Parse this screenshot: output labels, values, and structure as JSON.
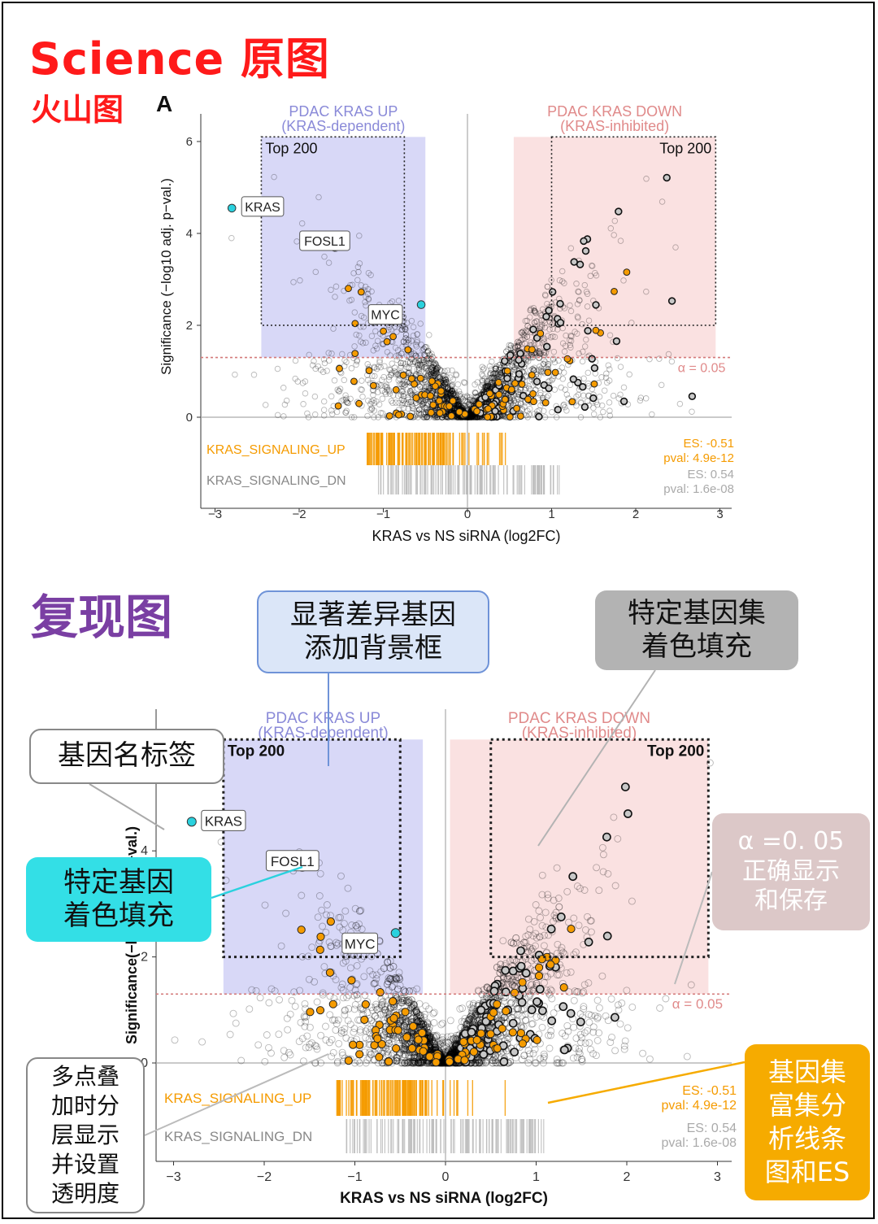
{
  "headers": {
    "science_title": "Science 原图",
    "volcano_label": "火山图",
    "figure_letter": "A",
    "repro_title": "复现图"
  },
  "callouts": {
    "significant_box": "显著差异基因\n添加背景框",
    "geneset_fill": "特定基因集\n着色填充",
    "gene_label": "基因名标签",
    "gene_fill": "特定基因\n着色填充",
    "alpha_display": "α =0. 05\n正确显示\n和保存",
    "layering": "多点叠\n加时分\n层显示\n并设置\n透明度",
    "gsea_barcode": "基因集\n富集分\n析线条\n图和ES"
  },
  "colors": {
    "up_panel": "#c8c8f3",
    "down_panel": "#f9dada",
    "highlight_gene": "#2ad1de",
    "geneset_up": "#f59b00",
    "geneset_dn": "#c8c8c8",
    "alpha_line": "#d47a7a",
    "up_text": "#8a8ad8",
    "down_text": "#e08a8a"
  },
  "chart_data": [
    {
      "type": "scatter",
      "xlabel": "KRAS vs NS siRNA (log2FC)",
      "ylabel": "Significance (−log10 adj. p−val.)",
      "xlim": [
        -3.2,
        3.2
      ],
      "ylim": [
        0,
        6.5
      ],
      "xticks": [
        -3,
        -2,
        -1,
        0,
        1,
        2,
        3
      ],
      "yticks": [
        0,
        2,
        4,
        6
      ],
      "alpha_label": "α = 0.05",
      "alpha_value": 1.3,
      "up_region": {
        "title": "PDAC KRAS UP",
        "subtitle": "(KRAS-dependent)",
        "box_label": "Top 200",
        "x": [
          -2.45,
          -0.75
        ],
        "y": [
          2.0,
          6.1
        ]
      },
      "down_region": {
        "title": "PDAC KRAS DOWN",
        "subtitle": "(KRAS-inhibited)",
        "box_label": "Top 200",
        "x": [
          1.0,
          2.95
        ],
        "y": [
          2.0,
          6.1
        ]
      },
      "labeled_genes": [
        {
          "name": "KRAS",
          "x": -2.8,
          "y": 4.55
        },
        {
          "name": "FOSL1",
          "x": -1.58,
          "y": 3.7
        },
        {
          "name": "MYC",
          "x": -0.55,
          "y": 2.45
        }
      ],
      "gene_sets": [
        {
          "name": "KRAS_SIGNALING_UP",
          "es_text": "ES: -0.51",
          "pval_text": "pval: 4.9e-12"
        },
        {
          "name": "KRAS_SIGNALING_DN",
          "es_text": "ES: 0.54",
          "pval_text": "pval: 1.6e-08"
        }
      ]
    },
    {
      "type": "scatter",
      "xlabel": "KRAS vs NS siRNA (log2FC)",
      "ylabel": "Significance(−log10 adj. p−val.)",
      "xlim": [
        -3.2,
        3.2
      ],
      "ylim": [
        0,
        6.5
      ],
      "xticks": [
        -3,
        -2,
        -1,
        0,
        1,
        2,
        3
      ],
      "yticks": [
        0,
        2,
        4
      ],
      "alpha_label": "α = 0.05",
      "alpha_value": 1.3,
      "up_region": {
        "title": "PDAC KRAS UP",
        "subtitle": "(KRAS-dependent)",
        "box_label": "Top 200",
        "x": [
          -2.45,
          -0.5
        ],
        "y": [
          2.0,
          6.1
        ]
      },
      "down_region": {
        "title": "PDAC KRAS DOWN",
        "subtitle": "(KRAS-inhibited)",
        "box_label": "Top 200",
        "x": [
          0.5,
          2.9
        ],
        "y": [
          2.0,
          6.1
        ]
      },
      "labeled_genes": [
        {
          "name": "KRAS",
          "x": -2.8,
          "y": 4.55
        },
        {
          "name": "FOSL1",
          "x": -1.58,
          "y": 3.7
        },
        {
          "name": "MYC",
          "x": -0.55,
          "y": 2.45
        }
      ],
      "gene_sets": [
        {
          "name": "KRAS_SIGNALING_UP",
          "es_text": "ES: -0.51",
          "pval_text": "pval: 4.9e-12"
        },
        {
          "name": "KRAS_SIGNALING_DN",
          "es_text": "ES: 0.54",
          "pval_text": "pval: 1.6e-08"
        }
      ]
    }
  ]
}
